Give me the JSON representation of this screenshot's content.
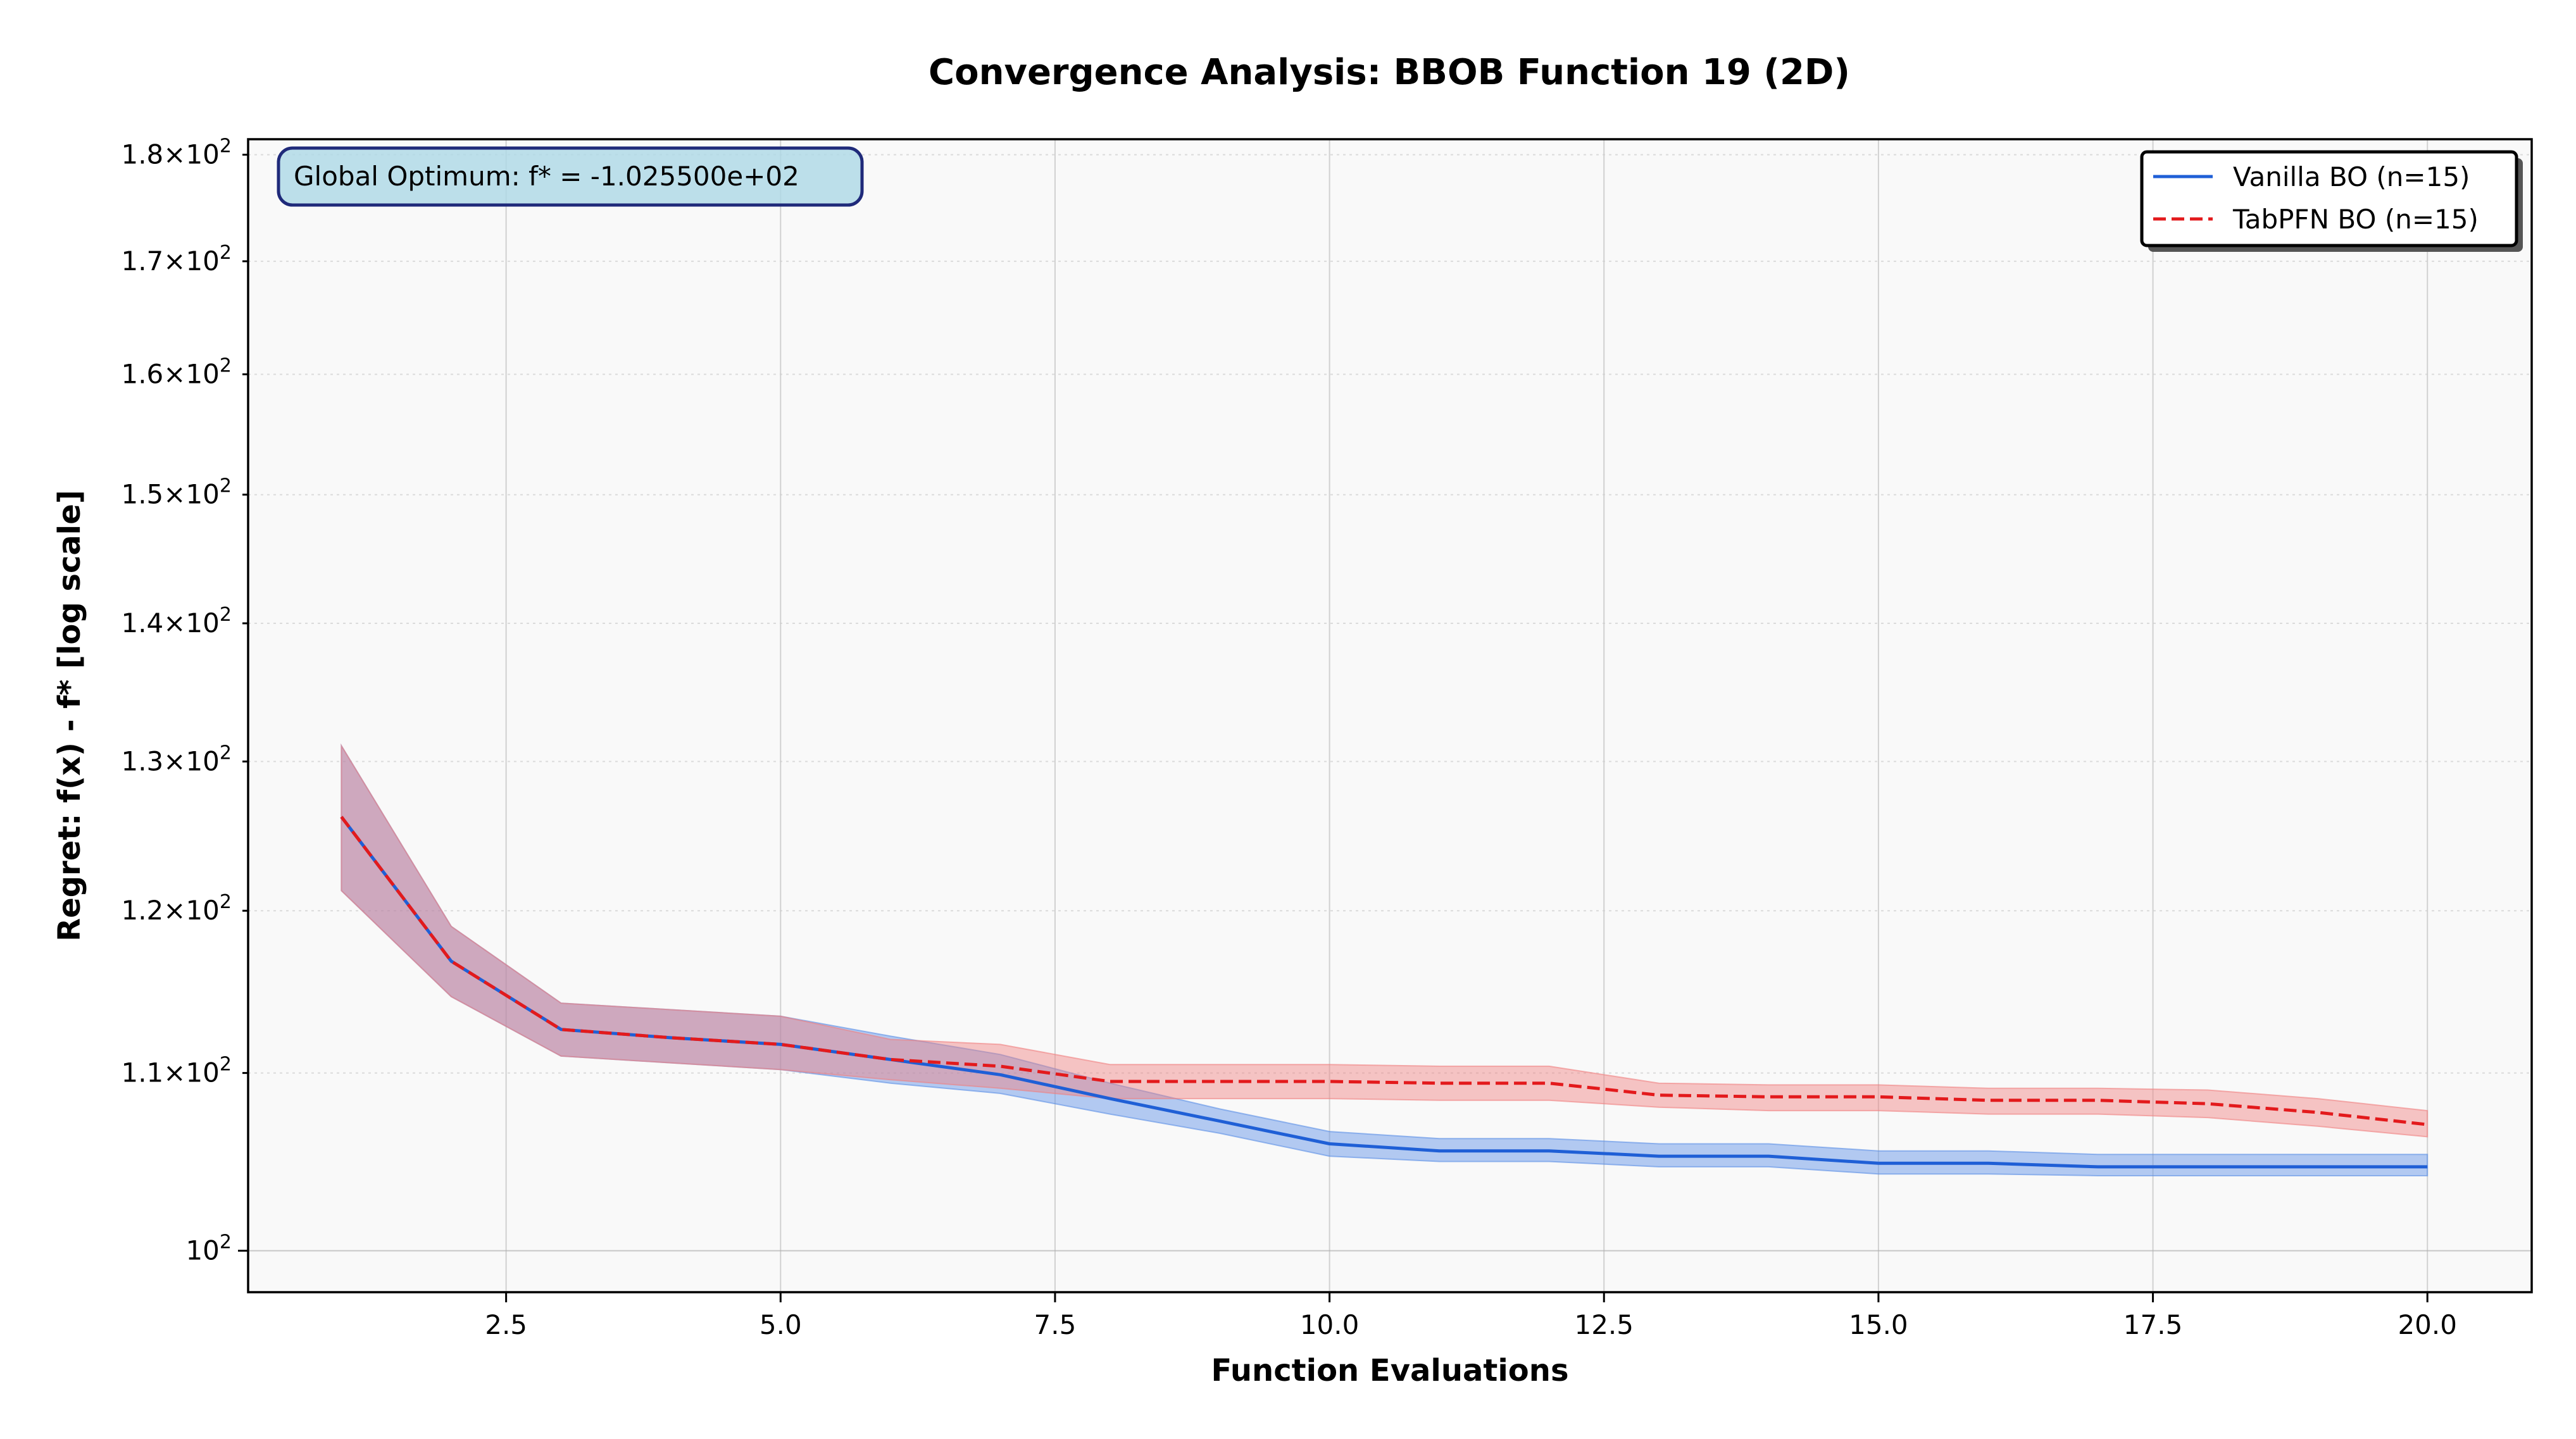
{
  "chart_data": {
    "type": "line",
    "title": "Convergence Analysis: BBOB Function 19 (2D)",
    "xlabel": "Function Evaluations",
    "ylabel": "Regret: f(x) - f* [log scale]",
    "yscale": "log",
    "xlim": [
      0.15,
      20.95
    ],
    "ylim": [
      97.8,
      181.5
    ],
    "grid": true,
    "legend_position": "top-right",
    "x_ticks": [
      2.5,
      5.0,
      7.5,
      10.0,
      12.5,
      15.0,
      17.5,
      20.0
    ],
    "x_tick_labels": [
      "2.5",
      "5.0",
      "7.5",
      "10.0",
      "12.5",
      "15.0",
      "17.5",
      "20.0"
    ],
    "y_ticks": [
      100,
      110,
      120,
      130,
      140,
      150,
      160,
      170,
      180
    ],
    "y_tick_labels": [
      {
        "mantissa": "",
        "exp": "2"
      },
      {
        "mantissa": "1.1",
        "exp": "2"
      },
      {
        "mantissa": "1.2",
        "exp": "2"
      },
      {
        "mantissa": "1.3",
        "exp": "2"
      },
      {
        "mantissa": "1.4",
        "exp": "2"
      },
      {
        "mantissa": "1.5",
        "exp": "2"
      },
      {
        "mantissa": "1.6",
        "exp": "2"
      },
      {
        "mantissa": "1.7",
        "exp": "2"
      },
      {
        "mantissa": "1.8",
        "exp": "2"
      }
    ],
    "x": [
      1,
      2,
      3,
      4,
      5,
      6,
      7,
      8,
      9,
      10,
      11,
      12,
      13,
      14,
      15,
      16,
      17,
      18,
      19,
      20
    ],
    "series": [
      {
        "name": "Vanilla BO (n=15)",
        "color": "#1f5fd6",
        "band_color": "#5b8fe6",
        "style": "solid",
        "values": [
          126.2,
          116.8,
          112.6,
          112.1,
          111.7,
          110.8,
          109.9,
          108.5,
          107.2,
          105.9,
          105.5,
          105.5,
          105.2,
          105.2,
          104.8,
          104.8,
          104.6,
          104.6,
          104.6,
          104.6
        ],
        "lower": [
          121.3,
          114.6,
          111.0,
          110.6,
          110.2,
          109.4,
          108.8,
          107.6,
          106.5,
          105.2,
          104.9,
          104.9,
          104.6,
          104.6,
          104.2,
          104.2,
          104.1,
          104.1,
          104.1,
          104.1
        ],
        "upper": [
          131.1,
          119.0,
          114.2,
          113.8,
          113.4,
          112.2,
          111.1,
          109.4,
          107.9,
          106.6,
          106.2,
          106.2,
          105.9,
          105.9,
          105.5,
          105.5,
          105.3,
          105.3,
          105.3,
          105.3
        ]
      },
      {
        "name": "TabPFN BO (n=15)",
        "color": "#e31a1c",
        "band_color": "#f08080",
        "style": "dashed",
        "values": [
          126.2,
          116.8,
          112.6,
          112.1,
          111.7,
          110.8,
          110.4,
          109.5,
          109.5,
          109.5,
          109.4,
          109.4,
          108.7,
          108.6,
          108.6,
          108.4,
          108.4,
          108.2,
          107.7,
          107.0
        ],
        "lower": [
          121.3,
          114.6,
          111.0,
          110.6,
          110.2,
          109.6,
          109.1,
          108.5,
          108.5,
          108.5,
          108.4,
          108.4,
          108.0,
          107.8,
          107.8,
          107.6,
          107.6,
          107.4,
          106.9,
          106.3
        ],
        "upper": [
          131.1,
          119.0,
          114.2,
          113.8,
          113.4,
          112.0,
          111.7,
          110.5,
          110.5,
          110.5,
          110.4,
          110.4,
          109.4,
          109.3,
          109.3,
          109.1,
          109.1,
          109.0,
          108.5,
          107.8
        ]
      }
    ],
    "annotation": "Global Optimum: f* = -1.025500e+02"
  }
}
